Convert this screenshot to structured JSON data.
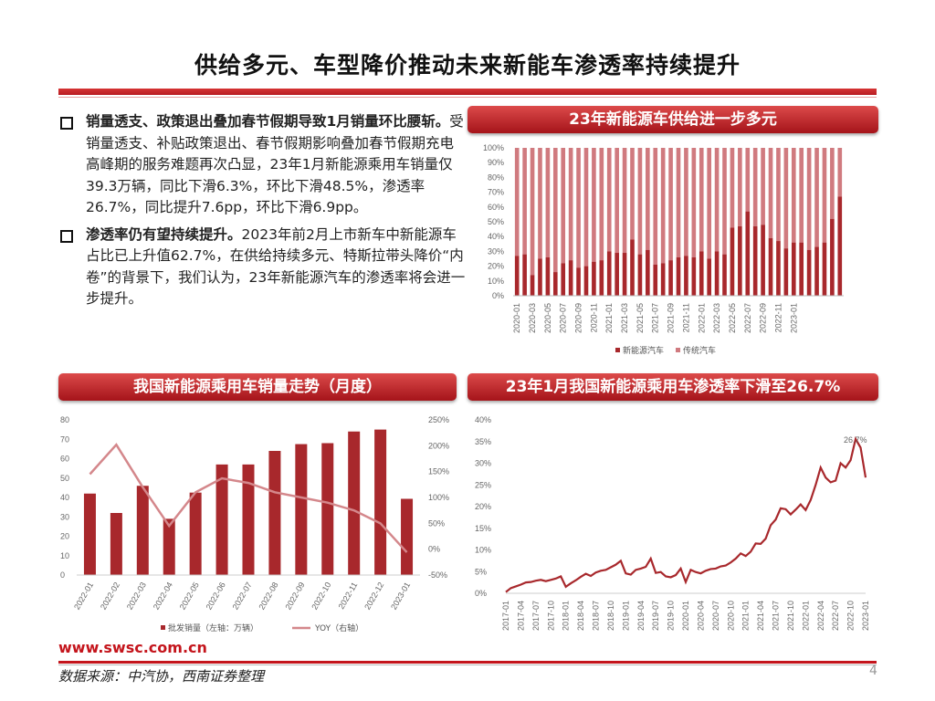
{
  "page": {
    "title": "供给多元、车型降价推动未来新能车渗透率持续提升",
    "url": "www.swsc.com.cn",
    "source": "数据来源：中汽协，西南证券整理",
    "page_number": "4"
  },
  "bullets": [
    {
      "bold": "销量透支、政策退出叠加春节假期导致1月销量环比腰斩。",
      "text": "受销量透支、补贴政策退出、春节假期影响叠加春节假期充电高峰期的服务难题再次凸显，23年1月新能源乘用车销量仅39.3万辆，同比下滑6.3%，环比下滑48.5%，渗透率26.7%，同比提升7.6pp，环比下滑6.9pp。"
    },
    {
      "bold": "渗透率仍有望持续提升。",
      "text": "2023年前2月上市新车中新能源车占比已上升值62.7%，在供给持续多元、特斯拉带头降价“内卷”的背景下，我们认为，23年新能源汽车的渗透率将会进一步提升。"
    }
  ],
  "banners": {
    "supply": "23年新能源车供给进一步多元",
    "sales": "我国新能源乘用车销量走势（月度）",
    "penetration": "23年1月我国新能源乘用车渗透率下滑至26.7%"
  },
  "colors": {
    "dark_red": "#a8282c",
    "light_red": "#d07a7f",
    "line_red": "#d4878b",
    "accent": "#c4151c"
  },
  "chart_data": [
    {
      "type": "bar",
      "stacked": true,
      "title": "23年新能源车供给进一步多元",
      "x_tick_labels": [
        "2020-01",
        "2020-03",
        "2020-05",
        "2020-07",
        "2020-09",
        "2020-11",
        "2021-01",
        "2021-03",
        "2021-05",
        "2021-07",
        "2021-09",
        "2021-11",
        "2022-01",
        "2022-03",
        "2022-05",
        "2022-07",
        "2022-09",
        "2022-11",
        "2023-01"
      ],
      "y_tick_labels": [
        "0%",
        "10%",
        "20%",
        "30%",
        "40%",
        "50%",
        "60%",
        "70%",
        "80%",
        "90%",
        "100%"
      ],
      "ylim": [
        0,
        100
      ],
      "series": [
        {
          "name": "新能源汽车",
          "values": [
            27,
            28,
            14,
            25,
            26,
            16,
            22,
            24,
            19,
            20,
            23,
            24,
            30,
            29,
            29,
            38,
            28,
            31,
            21,
            22,
            24,
            26,
            27,
            26,
            30,
            25,
            30,
            28,
            46,
            47,
            57,
            47,
            48,
            39,
            37,
            32,
            36,
            36,
            31,
            33,
            36,
            52,
            67
          ]
        },
        {
          "name": "传统汽车",
          "values": [
            73,
            72,
            86,
            75,
            74,
            84,
            78,
            76,
            81,
            80,
            77,
            76,
            70,
            71,
            71,
            62,
            72,
            69,
            79,
            78,
            76,
            74,
            73,
            74,
            70,
            75,
            70,
            72,
            54,
            53,
            43,
            53,
            52,
            61,
            63,
            68,
            64,
            64,
            69,
            67,
            64,
            48,
            33
          ]
        }
      ],
      "legend": [
        "新能源汽车",
        "传统汽车"
      ]
    },
    {
      "type": "bar+line",
      "title": "我国新能源乘用车销量走势（月度）",
      "categories": [
        "2022-01",
        "2022-02",
        "2022-03",
        "2022-04",
        "2022-05",
        "2022-06",
        "2022-07",
        "2022-08",
        "2022-09",
        "2022-10",
        "2022-11",
        "2022-12",
        "2023-01"
      ],
      "series": [
        {
          "name": "批发销量（左轴：万辆）",
          "axis": "left",
          "values": [
            42,
            32,
            46,
            29,
            42.5,
            57,
            57,
            64,
            67.5,
            68,
            74,
            75,
            39.3
          ]
        },
        {
          "name": "YOY（右轴）",
          "axis": "right",
          "values": [
            145,
            202,
            120,
            45,
            110,
            137,
            128,
            110,
            100,
            90,
            75,
            50,
            -6
          ]
        }
      ],
      "left_tick_labels": [
        "0",
        "10",
        "20",
        "30",
        "40",
        "50",
        "60",
        "70",
        "80"
      ],
      "right_tick_labels": [
        "-50%",
        "0%",
        "50%",
        "100%",
        "150%",
        "200%",
        "250%"
      ],
      "ylim_left": [
        0,
        80
      ],
      "ylim_right": [
        -50,
        250
      ],
      "legend": [
        "批发销量（左轴：万辆）",
        "YOY（右轴）"
      ]
    },
    {
      "type": "line",
      "title": "23年1月我国新能源乘用车渗透率下滑至26.7%",
      "x_tick_labels": [
        "2017-01",
        "2017-04",
        "2017-07",
        "2017-10",
        "2018-01",
        "2018-04",
        "2018-07",
        "2018-10",
        "2019-01",
        "2019-04",
        "2019-07",
        "2019-10",
        "2020-01",
        "2020-04",
        "2020-07",
        "2020-10",
        "2021-01",
        "2021-04",
        "2021-07",
        "2021-10",
        "2022-01",
        "2022-04",
        "2022-07",
        "2022-10",
        "2023-01"
      ],
      "y_tick_labels": [
        "0%",
        "5%",
        "10%",
        "15%",
        "20%",
        "25%",
        "30%",
        "35%",
        "40%"
      ],
      "ylim": [
        0,
        40
      ],
      "values": [
        0.3,
        1.2,
        1.6,
        2.0,
        2.5,
        2.6,
        2.9,
        3.1,
        2.8,
        3.1,
        3.4,
        3.9,
        1.5,
        2.3,
        3.0,
        3.8,
        4.5,
        4.0,
        4.8,
        5.2,
        5.4,
        6.0,
        6.6,
        7.5,
        4.6,
        4.3,
        5.4,
        5.7,
        6.1,
        8.0,
        4.7,
        4.9,
        3.9,
        3.7,
        4.2,
        5.7,
        2.6,
        5.4,
        4.9,
        4.6,
        5.2,
        5.6,
        5.7,
        6.2,
        6.4,
        7.1,
        8.0,
        9.2,
        8.6,
        9.6,
        11.5,
        11.4,
        12.6,
        15.7,
        17.0,
        19.6,
        19.4,
        18.2,
        19.3,
        20.5,
        19.2,
        21.5,
        25.0,
        29.0,
        26.7,
        25.6,
        26.0,
        30.0,
        29.0,
        30.7,
        35.6,
        33.6,
        26.7
      ],
      "annotation": "26.7%"
    }
  ]
}
